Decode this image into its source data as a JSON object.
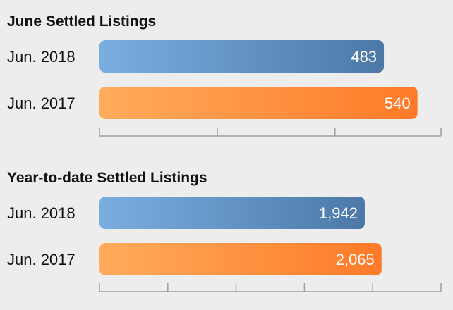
{
  "chart_data": [
    {
      "type": "bar",
      "orientation": "horizontal",
      "title": "June Settled Listings",
      "categories": [
        "Jun. 2018",
        "Jun. 2017"
      ],
      "values": [
        483,
        540
      ],
      "value_labels": [
        "483",
        "540"
      ],
      "xlim": [
        0,
        580
      ],
      "xticks": [
        0,
        200,
        400,
        580
      ],
      "grid": false,
      "legend": "none"
    },
    {
      "type": "bar",
      "orientation": "horizontal",
      "title": "Year-to-date Settled Listings",
      "categories": [
        "Jun. 2018",
        "Jun. 2017"
      ],
      "values": [
        1942,
        2065
      ],
      "value_labels": [
        "1,942",
        "2,065"
      ],
      "xlim": [
        0,
        2500
      ],
      "xticks": [
        0,
        500,
        1000,
        1500,
        2000,
        2500
      ],
      "grid": false,
      "legend": "none"
    }
  ],
  "colors": {
    "series_2018_start": "#7aaee0",
    "series_2018_end": "#4c79a7",
    "series_2017_start": "#ffac5c",
    "series_2017_end": "#ff7a28",
    "background": "#ededed",
    "axis": "#9e9e9e"
  }
}
